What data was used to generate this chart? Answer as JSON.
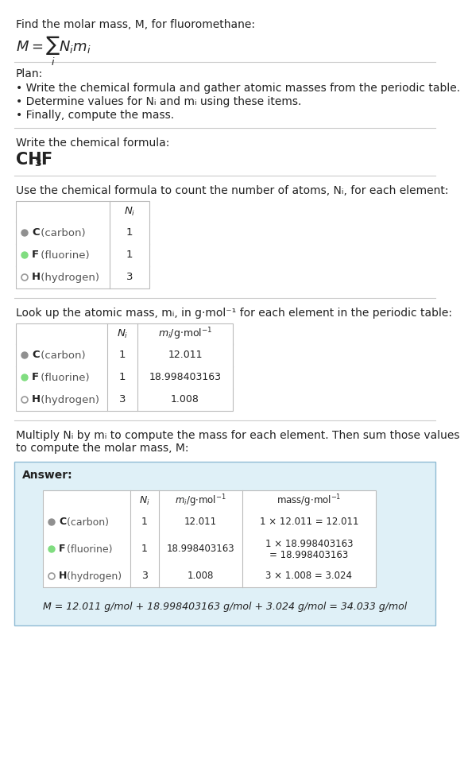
{
  "title": "Find the molar mass, M, for fluoromethane:",
  "bg_color": "#ffffff",
  "light_blue_bg": "#dff0f7",
  "text_color": "#222222",
  "gray_text": "#555555",
  "element_colors": {
    "C": "#909090",
    "F": "#80dd80",
    "H": "#ffffff"
  },
  "element_border": {
    "C": "#909090",
    "F": "#55aa55",
    "H": "#999999"
  },
  "plan_title": "Plan:",
  "plan_bullets": [
    "• Write the chemical formula and gather atomic masses from the periodic table.",
    "• Determine values for Nᵢ and mᵢ using these items.",
    "• Finally, compute the mass."
  ],
  "formula_section_label": "Write the chemical formula:",
  "count_section_label": "Use the chemical formula to count the number of atoms, Nᵢ, for each element:",
  "lookup_section_label": "Look up the atomic mass, mᵢ, in g·mol⁻¹ for each element in the periodic table:",
  "multiply_section_label": "Multiply Nᵢ by mᵢ to compute the mass for each element. Then sum those values\nto compute the molar mass, M:",
  "elements": [
    "C (carbon)",
    "F (fluorine)",
    "H (hydrogen)"
  ],
  "element_symbols": [
    "C",
    "F",
    "H"
  ],
  "N_i": [
    "1",
    "1",
    "3"
  ],
  "m_i": [
    "12.011",
    "18.998403163",
    "1.008"
  ],
  "mass_exprs_line1": [
    "1 × 12.011 = 12.011",
    "1 × 18.998403163",
    "3 × 1.008 = 3.024"
  ],
  "mass_exprs_line2": [
    "",
    "= 18.998403163",
    ""
  ],
  "answer_label": "Answer:",
  "final_equation": "M = 12.011 g/mol + 18.998403163 g/mol + 3.024 g/mol = 34.033 g/mol",
  "line_color": "#cccccc",
  "table_line_color": "#bbbbbb"
}
